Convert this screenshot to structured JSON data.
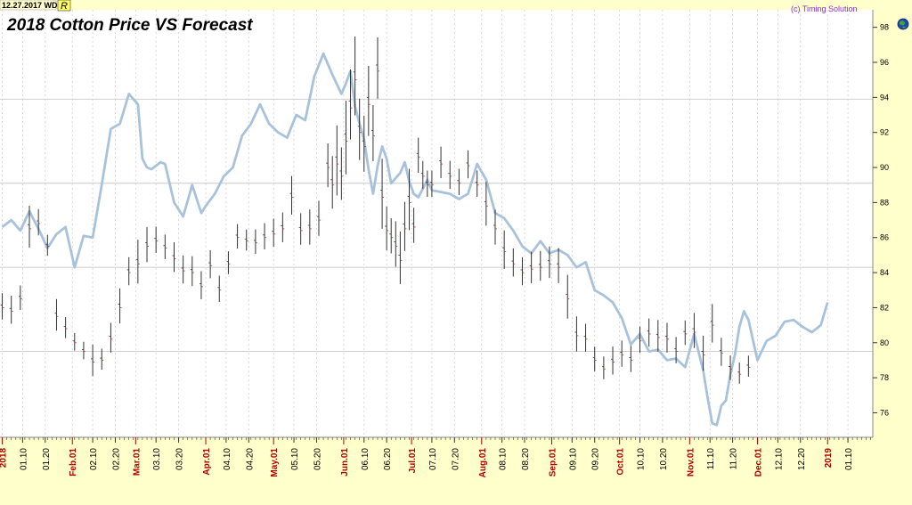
{
  "header": {
    "date_badge": "12.27.2017 WD",
    "mode_badge": "R",
    "credit": "(c) Timing Solution"
  },
  "colors": {
    "background": "#ffffff",
    "axis_panel": "#ffffcc",
    "grid": "#cfcfcf",
    "forecast_line": "#a9c2dc",
    "price_bars": "#333333",
    "major_tick_label": "#b00000",
    "credit_text": "#8a2be2"
  },
  "icons": {
    "globe": "globe-icon"
  },
  "chart_data": {
    "type": "line",
    "title": "2018 Cotton Price VS Forecast",
    "ylim": [
      74.6,
      99
    ],
    "y_ticks": [
      76,
      78,
      80,
      82,
      84,
      86,
      88,
      90,
      92,
      94,
      96,
      98
    ],
    "y_tick_labels": [
      "76",
      "78",
      "80",
      "82",
      "84",
      "86",
      "88",
      "90",
      "92",
      "94",
      "96",
      "98"
    ],
    "y_gridlines": [
      79.5,
      84.3,
      89.1,
      93.9
    ],
    "x_tick_labels": [
      {
        "day": 0,
        "label": "2018",
        "major": true
      },
      {
        "day": 9,
        "label": "01.10",
        "major": false
      },
      {
        "day": 19,
        "label": "01.20",
        "major": false
      },
      {
        "day": 31,
        "label": "Feb.01",
        "major": true
      },
      {
        "day": 40,
        "label": "02.10",
        "major": false
      },
      {
        "day": 50,
        "label": "02.20",
        "major": false
      },
      {
        "day": 59,
        "label": "Mar.01",
        "major": true
      },
      {
        "day": 68,
        "label": "03.10",
        "major": false
      },
      {
        "day": 78,
        "label": "03.20",
        "major": false
      },
      {
        "day": 90,
        "label": "Apr.01",
        "major": true
      },
      {
        "day": 99,
        "label": "04.10",
        "major": false
      },
      {
        "day": 109,
        "label": "04.20",
        "major": false
      },
      {
        "day": 120,
        "label": "May.01",
        "major": true
      },
      {
        "day": 129,
        "label": "05.10",
        "major": false
      },
      {
        "day": 139,
        "label": "05.20",
        "major": false
      },
      {
        "day": 151,
        "label": "Jun.01",
        "major": true
      },
      {
        "day": 160,
        "label": "06.10",
        "major": false
      },
      {
        "day": 170,
        "label": "06.20",
        "major": false
      },
      {
        "day": 181,
        "label": "Jul.01",
        "major": true
      },
      {
        "day": 190,
        "label": "07.10",
        "major": false
      },
      {
        "day": 200,
        "label": "07.20",
        "major": false
      },
      {
        "day": 212,
        "label": "Aug.01",
        "major": true
      },
      {
        "day": 221,
        "label": "08.10",
        "major": false
      },
      {
        "day": 231,
        "label": "08.20",
        "major": false
      },
      {
        "day": 243,
        "label": "Sep.01",
        "major": true
      },
      {
        "day": 252,
        "label": "09.10",
        "major": false
      },
      {
        "day": 262,
        "label": "09.20",
        "major": false
      },
      {
        "day": 273,
        "label": "Oct.01",
        "major": true
      },
      {
        "day": 282,
        "label": "10.10",
        "major": false
      },
      {
        "day": 292,
        "label": "10.20",
        "major": false
      },
      {
        "day": 304,
        "label": "Nov.01",
        "major": true
      },
      {
        "day": 313,
        "label": "11.10",
        "major": false
      },
      {
        "day": 323,
        "label": "11.20",
        "major": false
      },
      {
        "day": 334,
        "label": "Dec.01",
        "major": true
      },
      {
        "day": 343,
        "label": "12.10",
        "major": false
      },
      {
        "day": 353,
        "label": "12.20",
        "major": false
      },
      {
        "day": 365,
        "label": "2019",
        "major": true
      },
      {
        "day": 374,
        "label": "01.10",
        "major": false
      }
    ],
    "xlim_days": [
      -1,
      385
    ],
    "series": [
      {
        "type": "line",
        "x": [
          0,
          4,
          8,
          12,
          16,
          20,
          24,
          28,
          32,
          36,
          40,
          44,
          48,
          52,
          56,
          60,
          62,
          64,
          66,
          70,
          72,
          76,
          80,
          84,
          86,
          88,
          90,
          94,
          98,
          102,
          106,
          110,
          114,
          118,
          122,
          126,
          130,
          134,
          138,
          142,
          146,
          150,
          152,
          154,
          156,
          158,
          160,
          162,
          164,
          166,
          168,
          170,
          172,
          174,
          176,
          178,
          180,
          182,
          184,
          186,
          188,
          190,
          194,
          198,
          202,
          206,
          210,
          214,
          218,
          222,
          226,
          230,
          234,
          238,
          242,
          246,
          250,
          254,
          258,
          262,
          266,
          270,
          274,
          278,
          282,
          286,
          290,
          294,
          298,
          302,
          306,
          310,
          312,
          314,
          316,
          318,
          320,
          322,
          324,
          326,
          328,
          330,
          334,
          338,
          342,
          346,
          350,
          354,
          358,
          362,
          365
        ],
        "y": [
          86.6,
          87.0,
          86.4,
          87.5,
          86.5,
          85.4,
          86.2,
          86.6,
          84.3,
          86.1,
          86.0,
          89.0,
          92.2,
          92.5,
          94.2,
          93.6,
          90.5,
          90.0,
          89.9,
          90.3,
          90.2,
          88.0,
          87.2,
          89.0,
          88.2,
          87.4,
          87.8,
          88.5,
          89.5,
          90.0,
          91.8,
          92.5,
          93.6,
          92.5,
          92.0,
          91.7,
          93.0,
          92.7,
          95.2,
          96.5,
          95.3,
          94.2,
          94.8,
          95.5,
          93.5,
          92.5,
          91.6,
          89.9,
          88.5,
          90.1,
          91.2,
          90.5,
          89.1,
          89.4,
          89.7,
          90.3,
          89.2,
          88.5,
          88.3,
          88.8,
          89.3,
          88.7,
          88.6,
          88.5,
          88.2,
          88.5,
          90.2,
          89.3,
          87.4,
          87.1,
          86.4,
          85.5,
          85.1,
          85.8,
          85.1,
          85.3,
          85.0,
          84.3,
          84.6,
          83.0,
          82.7,
          82.3,
          81.4,
          79.9,
          80.5,
          79.5,
          79.6,
          79.0,
          79.1,
          78.6,
          80.5,
          78.4,
          76.8,
          75.4,
          75.3,
          76.4,
          76.7,
          78.2,
          79.3,
          80.9,
          81.8,
          81.3,
          79.0,
          80.1,
          80.4,
          81.2,
          81.3,
          80.9,
          80.6,
          81.0,
          82.3
        ]
      },
      {
        "type": "ohlc",
        "x": [
          0,
          4,
          8,
          12,
          16,
          20,
          24,
          28,
          32,
          36,
          40,
          44,
          48,
          52,
          56,
          60,
          64,
          68,
          72,
          76,
          80,
          84,
          88,
          92,
          96,
          100,
          104,
          108,
          112,
          116,
          120,
          124,
          128,
          132,
          136,
          140,
          144,
          146,
          148,
          150,
          152,
          154,
          156,
          158,
          160,
          162,
          164,
          166,
          168,
          170,
          172,
          174,
          176,
          178,
          180,
          182,
          184,
          186,
          188,
          190,
          194,
          198,
          202,
          206,
          210,
          214,
          218,
          222,
          226,
          230,
          234,
          238,
          242,
          246,
          250,
          254,
          258,
          262,
          266,
          270,
          274,
          278,
          282,
          286,
          290,
          294,
          298,
          302,
          306,
          310,
          314,
          318,
          322,
          326,
          330
        ],
        "y": [
          82.0,
          81.8,
          82.5,
          86.5,
          86.8,
          85.5,
          81.5,
          80.8,
          80.0,
          79.5,
          78.9,
          79.0,
          80.2,
          82.0,
          84.0,
          84.5,
          85.5,
          85.8,
          85.4,
          84.8,
          84.1,
          84.0,
          83.2,
          84.4,
          83.0,
          84.5,
          86.0,
          85.8,
          85.7,
          86.0,
          86.2,
          86.5,
          88.3,
          86.4,
          86.5,
          87.0,
          90.0,
          89.0,
          90.2,
          89.5,
          91.5,
          93.4,
          95.0,
          92.0,
          91.2,
          93.6,
          91.8,
          95.5,
          88.3,
          86.4,
          86.0,
          85.5,
          84.7,
          86.5,
          88.0,
          86.6,
          90.6,
          89.5,
          89.0,
          89.0,
          90.2,
          89.5,
          89.1,
          90.1,
          89.0,
          87.8,
          86.5,
          85.2,
          84.5,
          84.0,
          84.2,
          84.3,
          84.5,
          84.3,
          82.5,
          80.4,
          80.2,
          79.0,
          78.5,
          78.9,
          79.3,
          79.0,
          80.1,
          80.5,
          80.3,
          80.2,
          79.5,
          80.5,
          80.6,
          79.3,
          81.0,
          79.4,
          78.5,
          78.2,
          78.6
        ],
        "range": [
          1.5,
          1.6,
          1.4,
          2.4,
          1.5,
          1.2,
          1.8,
          1.2,
          1.0,
          1.0,
          1.8,
          1.2,
          1.7,
          2.0,
          1.6,
          2.5,
          2.0,
          1.5,
          1.4,
          1.7,
          1.6,
          1.7,
          1.6,
          1.6,
          1.5,
          1.3,
          1.4,
          1.2,
          1.4,
          1.5,
          1.6,
          1.7,
          2.2,
          1.8,
          2.0,
          2.0,
          2.5,
          3.0,
          4.0,
          3.0,
          4.2,
          4.0,
          4.5,
          3.5,
          3.2,
          4.0,
          3.2,
          3.5,
          4.0,
          2.5,
          2.0,
          2.6,
          3.0,
          2.8,
          3.5,
          2.0,
          2.0,
          1.6,
          1.5,
          1.5,
          1.8,
          1.6,
          1.5,
          1.6,
          1.5,
          2.5,
          2.0,
          2.2,
          1.6,
          1.6,
          1.8,
          1.7,
          1.8,
          2.0,
          2.5,
          2.0,
          1.6,
          1.4,
          1.3,
          1.6,
          1.5,
          1.5,
          1.5,
          1.6,
          1.8,
          1.7,
          1.5,
          1.4,
          2.0,
          2.0,
          2.2,
          1.6,
          1.4,
          1.2,
          1.2
        ]
      }
    ],
    "grid": true,
    "legend": "none"
  }
}
